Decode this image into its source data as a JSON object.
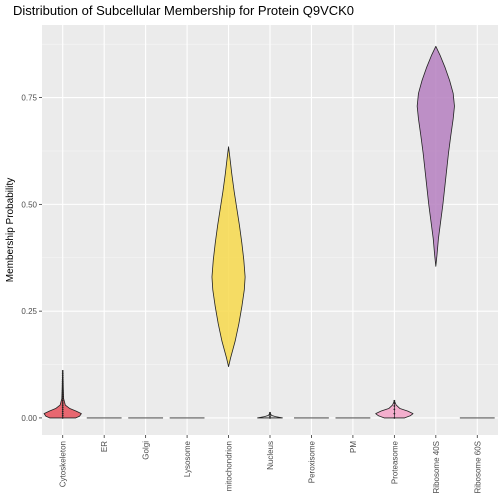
{
  "chart_data": {
    "type": "violin",
    "title": "Distribution of Subcellular Membership for Protein Q9VCK0",
    "xlabel": "",
    "ylabel": "Membership Probability",
    "ylim": [
      -0.04,
      0.92
    ],
    "yticks": [
      0.0,
      0.25,
      0.5,
      0.75
    ],
    "ytick_labels": [
      "0.00",
      "0.25",
      "0.50",
      "0.75"
    ],
    "grid": true,
    "legend": "none",
    "categories": [
      "Cytoskeleton",
      "ER",
      "Golgi",
      "Lysosome",
      "mitochondrion",
      "Nucleus",
      "Peroxisome",
      "PM",
      "Proteasome",
      "Ribosome 40S",
      "Ribosome 60S"
    ],
    "series": [
      {
        "category": "Cytoskeleton",
        "color": "#e8505b",
        "min": 0.0,
        "max": 0.11,
        "mode": 0.01,
        "max_width_frac": 0.45,
        "profile": [
          [
            0.0,
            0.7
          ],
          [
            0.004,
            0.9
          ],
          [
            0.01,
            1.0
          ],
          [
            0.016,
            0.72
          ],
          [
            0.022,
            0.38
          ],
          [
            0.03,
            0.14
          ],
          [
            0.045,
            0.05
          ],
          [
            0.07,
            0.03
          ],
          [
            0.09,
            0.02
          ],
          [
            0.11,
            0.0
          ]
        ],
        "points": [
          0.0,
          0.005,
          0.01,
          0.015,
          0.02,
          0.025,
          0.03,
          0.035,
          0.04,
          0.045,
          0.05,
          0.055,
          0.06,
          0.065,
          0.07,
          0.075,
          0.08,
          0.085,
          0.09,
          0.095,
          0.1,
          0.105,
          0.11
        ]
      },
      {
        "category": "ER",
        "color": "#d8d8d8",
        "min": 0.0,
        "max": 0.0,
        "flat": true
      },
      {
        "category": "Golgi",
        "color": "#d8d8d8",
        "min": 0.0,
        "max": 0.0,
        "flat": true
      },
      {
        "category": "Lysosome",
        "color": "#d8d8d8",
        "min": 0.0,
        "max": 0.0,
        "flat": true
      },
      {
        "category": "mitochondrion",
        "color": "#f7d94c",
        "min": 0.12,
        "max": 0.635,
        "mode": 0.33,
        "max_width_frac": 0.4,
        "profile": [
          [
            0.12,
            0.0
          ],
          [
            0.14,
            0.12
          ],
          [
            0.18,
            0.4
          ],
          [
            0.22,
            0.62
          ],
          [
            0.26,
            0.8
          ],
          [
            0.3,
            0.95
          ],
          [
            0.33,
            1.0
          ],
          [
            0.37,
            0.92
          ],
          [
            0.41,
            0.8
          ],
          [
            0.45,
            0.66
          ],
          [
            0.49,
            0.5
          ],
          [
            0.53,
            0.34
          ],
          [
            0.57,
            0.2
          ],
          [
            0.61,
            0.08
          ],
          [
            0.635,
            0.0
          ]
        ]
      },
      {
        "category": "Nucleus",
        "color": "#d8d8d8",
        "min": 0.0,
        "max": 0.012,
        "mode": 0.0,
        "max_width_frac": 0.3,
        "profile": [
          [
            0.0,
            1.0
          ],
          [
            0.003,
            0.45
          ],
          [
            0.006,
            0.12
          ],
          [
            0.009,
            0.06
          ],
          [
            0.012,
            0.0
          ]
        ],
        "points": [
          0.0,
          0.004,
          0.008,
          0.012
        ]
      },
      {
        "category": "Peroxisome",
        "color": "#d8d8d8",
        "min": 0.0,
        "max": 0.0,
        "flat": true
      },
      {
        "category": "PM",
        "color": "#d8d8d8",
        "min": 0.0,
        "max": 0.0,
        "flat": true
      },
      {
        "category": "Proteasome",
        "color": "#f4a3c8",
        "min": 0.0,
        "max": 0.04,
        "mode": 0.01,
        "max_width_frac": 0.45,
        "profile": [
          [
            0.0,
            0.55
          ],
          [
            0.005,
            0.85
          ],
          [
            0.01,
            1.0
          ],
          [
            0.016,
            0.72
          ],
          [
            0.022,
            0.3
          ],
          [
            0.03,
            0.1
          ],
          [
            0.04,
            0.0
          ]
        ],
        "points": [
          0.0,
          0.01,
          0.02,
          0.028,
          0.035,
          0.04
        ]
      },
      {
        "category": "Ribosome 40S",
        "color": "#b57fbf",
        "min": 0.355,
        "max": 0.87,
        "mode": 0.72,
        "max_width_frac": 0.45,
        "profile": [
          [
            0.355,
            0.0
          ],
          [
            0.38,
            0.06
          ],
          [
            0.42,
            0.14
          ],
          [
            0.46,
            0.26
          ],
          [
            0.5,
            0.38
          ],
          [
            0.54,
            0.48
          ],
          [
            0.58,
            0.58
          ],
          [
            0.62,
            0.68
          ],
          [
            0.66,
            0.8
          ],
          [
            0.7,
            0.93
          ],
          [
            0.73,
            1.0
          ],
          [
            0.76,
            0.93
          ],
          [
            0.79,
            0.74
          ],
          [
            0.82,
            0.5
          ],
          [
            0.85,
            0.22
          ],
          [
            0.87,
            0.0
          ]
        ]
      },
      {
        "category": "Ribosome 60S",
        "color": "#d8d8d8",
        "min": 0.0,
        "max": 0.0,
        "flat": true
      }
    ]
  }
}
